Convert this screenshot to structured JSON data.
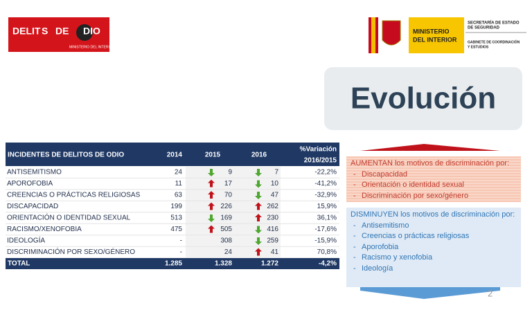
{
  "logos": {
    "left": {
      "title_a": "DELIT",
      "title_b": "S",
      "title_c": "DE",
      "title_d": "DIO",
      "subtitle": "MINISTERIO DEL INTERIOR"
    },
    "right": {
      "ministry": [
        "MINISTERIO",
        "DEL INTERIOR"
      ],
      "office": [
        "SECRETARÍA DE ESTADO",
        "DE SEGURIDAD"
      ],
      "cabinet": [
        "GABINETE DE COORDINACIÓN",
        "Y ESTUDIOS"
      ]
    }
  },
  "title": "Evolución",
  "table": {
    "header": [
      "INCIDENTES DE DELITOS DE ODIO",
      "2014",
      "2015",
      "2016",
      "%Variación",
      "2016/2015"
    ],
    "rows": [
      [
        "ANTISEMITISMO",
        "24",
        "9",
        "7",
        "-22,2%"
      ],
      [
        "APOROFOBIA",
        "11",
        "17",
        "10",
        "-41,2%"
      ],
      [
        "CREENCIAS O PRÁCTICAS RELIGIOSAS",
        "63",
        "70",
        "47",
        "-32,9%"
      ],
      [
        "DISCAPACIDAD",
        "199",
        "226",
        "262",
        "15,9%"
      ],
      [
        "ORIENTACIÓN O IDENTIDAD SEXUAL",
        "513",
        "169",
        "230",
        "36,1%"
      ],
      [
        "RACISMO/XENOFOBIA",
        "475",
        "505",
        "416",
        "-17,6%"
      ],
      [
        "IDEOLOGÍA",
        "-",
        "308",
        "259",
        "-15,9%"
      ],
      [
        "DISCRIMINACIÓN POR SEXO/GÉNERO",
        "-",
        "24",
        "41",
        "70,8%"
      ]
    ],
    "total": [
      "TOTAL",
      "1.285",
      "1.328",
      "1.272",
      "-4,2%"
    ]
  },
  "increase": {
    "heading": "AUMENTAN los motivos de discriminación por:",
    "items": [
      "Discapacidad",
      "Orientación o identidad sexual",
      "Discriminación por sexo/género"
    ]
  },
  "decrease": {
    "heading": "DISMINUYEN los motivos de discriminación por:",
    "items": [
      "Antisemitismo",
      "Creencias o prácticas religiosas",
      "Aporofobia",
      "Racismo y xenofobia",
      "Ideología"
    ]
  },
  "page_number": "2"
}
